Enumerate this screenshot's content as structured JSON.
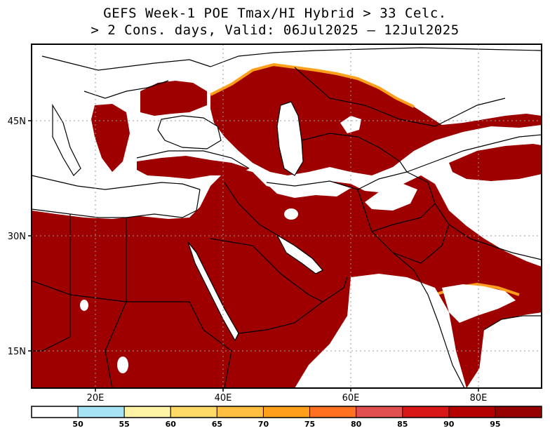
{
  "title": {
    "line1": "GEFS Week-1 POE Tmax/HI Hybrid > 33 Celc.",
    "line2": "> 2 Cons. days, Valid: 06Jul2025 – 12Jul2025"
  },
  "map": {
    "lat_labels": [
      "45N",
      "30N",
      "15N"
    ],
    "lon_labels": [
      "20E",
      "40E",
      "60E",
      "80E"
    ],
    "extent": {
      "lon": [
        11,
        90.5
      ],
      "lat": [
        10,
        55
      ]
    },
    "gridlines": true
  },
  "colorbar": {
    "labels": [
      "50",
      "55",
      "60",
      "65",
      "70",
      "75",
      "80",
      "85",
      "90",
      "95"
    ],
    "colors": [
      "#ffffff",
      "#a6e4f5",
      "#fff3a6",
      "#ffd966",
      "#ffbf40",
      "#ff9f1a",
      "#ff7020",
      "#e05050",
      "#d81818",
      "#b50000",
      "#960000"
    ]
  },
  "colors": {
    "high_poe": "#9e0000",
    "mid_poe": "#d81818",
    "low_poe": "#ff9f1a",
    "land_low": "#ffffff",
    "border": "#000000"
  }
}
